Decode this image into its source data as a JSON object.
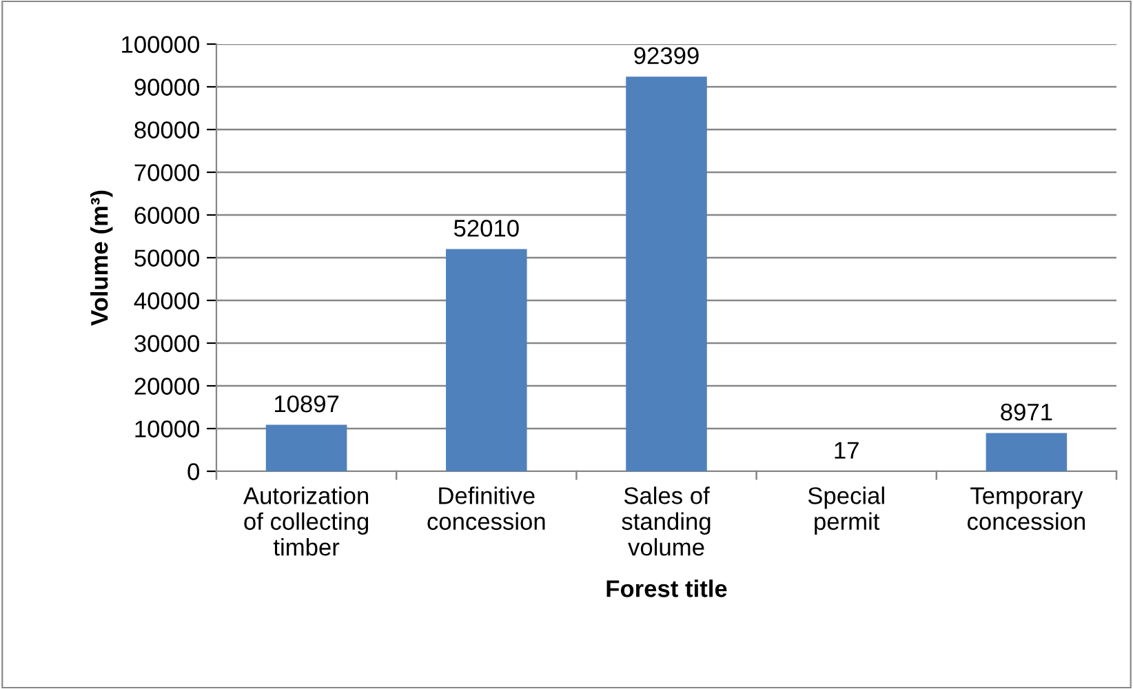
{
  "chart_data": {
    "type": "bar",
    "xlabel": "Forest title",
    "ylabel": "Volume (m³)",
    "categories": [
      "Autorization\nof collecting\ntimber",
      "Definitive\nconcession",
      "Sales of\nstanding\nvolume",
      "Special\npermit",
      "Temporary\nconcession"
    ],
    "values": [
      10897,
      52010,
      92399,
      17,
      8971
    ],
    "color": "#4f81bd",
    "ylim": [
      0,
      100000
    ],
    "yticks": [
      0,
      10000,
      20000,
      30000,
      40000,
      50000,
      60000,
      70000,
      80000,
      90000,
      100000
    ],
    "grid": "y",
    "data_labels": true,
    "legend": false
  }
}
